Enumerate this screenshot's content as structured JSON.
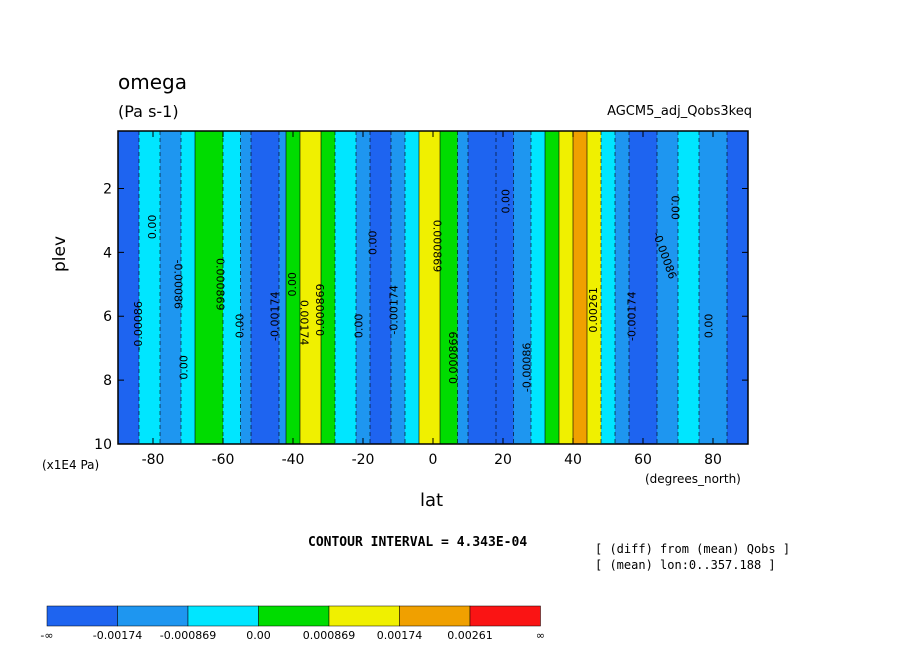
{
  "header": {
    "title": "omega",
    "units": "(Pa s-1)",
    "dataset": "AGCM5_adj_Qobs3keq"
  },
  "footer": {
    "contour_interval": "CONTOUR INTERVAL = 4.343E-04",
    "note_line1": "[ (diff) from (mean) Qobs ]",
    "note_line2": "[ (mean) lon:0..357.188 ]"
  },
  "chart_data": {
    "type": "heatmap",
    "title": "omega",
    "xlabel": "lat",
    "x_unit": "(degrees_north)",
    "ylabel": "plev",
    "y_unit": "(x1E4 Pa)",
    "xlim": [
      -90,
      90
    ],
    "ylim": [
      10,
      0.2
    ],
    "x_ticks": [
      -80,
      -60,
      -40,
      -20,
      0,
      20,
      40,
      60,
      80
    ],
    "x_tick_labels": [
      "-80",
      "-60",
      "-40",
      "-20",
      "0",
      "20",
      "40",
      "60",
      "80"
    ],
    "y_ticks": [
      2,
      4,
      6,
      8,
      10
    ],
    "y_tick_labels": [
      "2",
      "4",
      "6",
      "8",
      "10"
    ],
    "contour_interval": 0.0004343,
    "bands": [
      {
        "lat": [
          -90,
          -84
        ],
        "level": 0
      },
      {
        "lat": [
          -84,
          -78
        ],
        "level": 2
      },
      {
        "lat": [
          -78,
          -72
        ],
        "level": 1
      },
      {
        "lat": [
          -72,
          -68
        ],
        "level": 2
      },
      {
        "lat": [
          -68,
          -60
        ],
        "level": 3
      },
      {
        "lat": [
          -60,
          -55
        ],
        "level": 2
      },
      {
        "lat": [
          -55,
          -52
        ],
        "level": 1
      },
      {
        "lat": [
          -52,
          -44
        ],
        "level": 0
      },
      {
        "lat": [
          -44,
          -42
        ],
        "level": 1
      },
      {
        "lat": [
          -42,
          -38
        ],
        "level": 3
      },
      {
        "lat": [
          -38,
          -32
        ],
        "level": 4
      },
      {
        "lat": [
          -32,
          -28
        ],
        "level": 3
      },
      {
        "lat": [
          -28,
          -22
        ],
        "level": 2
      },
      {
        "lat": [
          -22,
          -18
        ],
        "level": 1
      },
      {
        "lat": [
          -18,
          -12
        ],
        "level": 0
      },
      {
        "lat": [
          -12,
          -8
        ],
        "level": 1
      },
      {
        "lat": [
          -8,
          -4
        ],
        "level": 2
      },
      {
        "lat": [
          -4,
          2
        ],
        "level": 4
      },
      {
        "lat": [
          2,
          7
        ],
        "level": 3
      },
      {
        "lat": [
          7,
          10
        ],
        "level": 1
      },
      {
        "lat": [
          10,
          18
        ],
        "level": 0
      },
      {
        "lat": [
          18,
          23
        ],
        "level": 0
      },
      {
        "lat": [
          23,
          28
        ],
        "level": 1
      },
      {
        "lat": [
          28,
          32
        ],
        "level": 2
      },
      {
        "lat": [
          32,
          36
        ],
        "level": 3
      },
      {
        "lat": [
          36,
          40
        ],
        "level": 4
      },
      {
        "lat": [
          40,
          44
        ],
        "level": 5
      },
      {
        "lat": [
          44,
          48
        ],
        "level": 4
      },
      {
        "lat": [
          48,
          52
        ],
        "level": 2
      },
      {
        "lat": [
          52,
          56
        ],
        "level": 1
      },
      {
        "lat": [
          56,
          64
        ],
        "level": 0
      },
      {
        "lat": [
          64,
          70
        ],
        "level": 1
      },
      {
        "lat": [
          70,
          76
        ],
        "level": 2
      },
      {
        "lat": [
          76,
          84
        ],
        "level": 1
      },
      {
        "lat": [
          84,
          90
        ],
        "level": 0
      }
    ],
    "contour_labels": [
      {
        "text": "-0.00086",
        "lat": -84,
        "plev": 6.3,
        "rotate": -90
      },
      {
        "text": "0.00",
        "lat": -80,
        "plev": 3.2,
        "rotate": -90
      },
      {
        "text": "-0.00086",
        "lat": -73,
        "plev": 5.0,
        "rotate": 90
      },
      {
        "text": "0.00",
        "lat": -71,
        "plev": 7.6,
        "rotate": -90
      },
      {
        "text": "0.000869",
        "lat": -61,
        "plev": 5.0,
        "rotate": 90
      },
      {
        "text": "0.00",
        "lat": -55,
        "plev": 6.3,
        "rotate": -90
      },
      {
        "text": "-0.00174",
        "lat": -45,
        "plev": 6.0,
        "rotate": -90
      },
      {
        "text": "0.00",
        "lat": -40,
        "plev": 5.0,
        "rotate": -90
      },
      {
        "text": "0.000869",
        "lat": -32,
        "plev": 5.8,
        "rotate": -90
      },
      {
        "text": "0.00174",
        "lat": -37,
        "plev": 6.2,
        "rotate": 90
      },
      {
        "text": "0.00",
        "lat": -21,
        "plev": 6.3,
        "rotate": -90
      },
      {
        "text": "0.00",
        "lat": -17,
        "plev": 3.7,
        "rotate": -90
      },
      {
        "text": "-0.00174",
        "lat": -11,
        "plev": 5.8,
        "rotate": -90
      },
      {
        "text": "0.000869",
        "lat": 1,
        "plev": 3.8,
        "rotate": 90
      },
      {
        "text": "0.000869",
        "lat": 6,
        "plev": 7.3,
        "rotate": -90
      },
      {
        "text": "0.00",
        "lat": 21,
        "plev": 2.4,
        "rotate": -90
      },
      {
        "text": "-0.00086",
        "lat": 27,
        "plev": 7.6,
        "rotate": -90
      },
      {
        "text": "0.00261",
        "lat": 46,
        "plev": 5.8,
        "rotate": -90
      },
      {
        "text": "-0.00086",
        "lat": 66,
        "plev": 4.1,
        "rotate": 70
      },
      {
        "text": "0.00",
        "lat": 69,
        "plev": 2.6,
        "rotate": 90
      },
      {
        "text": "-0.00174",
        "lat": 57,
        "plev": 6.0,
        "rotate": -90
      },
      {
        "text": "0.00",
        "lat": 79,
        "plev": 6.3,
        "rotate": -90
      }
    ],
    "colorbar": {
      "colors": [
        "#1e64f0",
        "#1e96f0",
        "#00e6ff",
        "#00dc00",
        "#f0f000",
        "#f0a000",
        "#fa1414"
      ],
      "labels": [
        "-∞",
        "-0.00174",
        "-0.000869",
        "0.00",
        "0.000869",
        "0.00174",
        "0.00261",
        "∞"
      ]
    }
  }
}
